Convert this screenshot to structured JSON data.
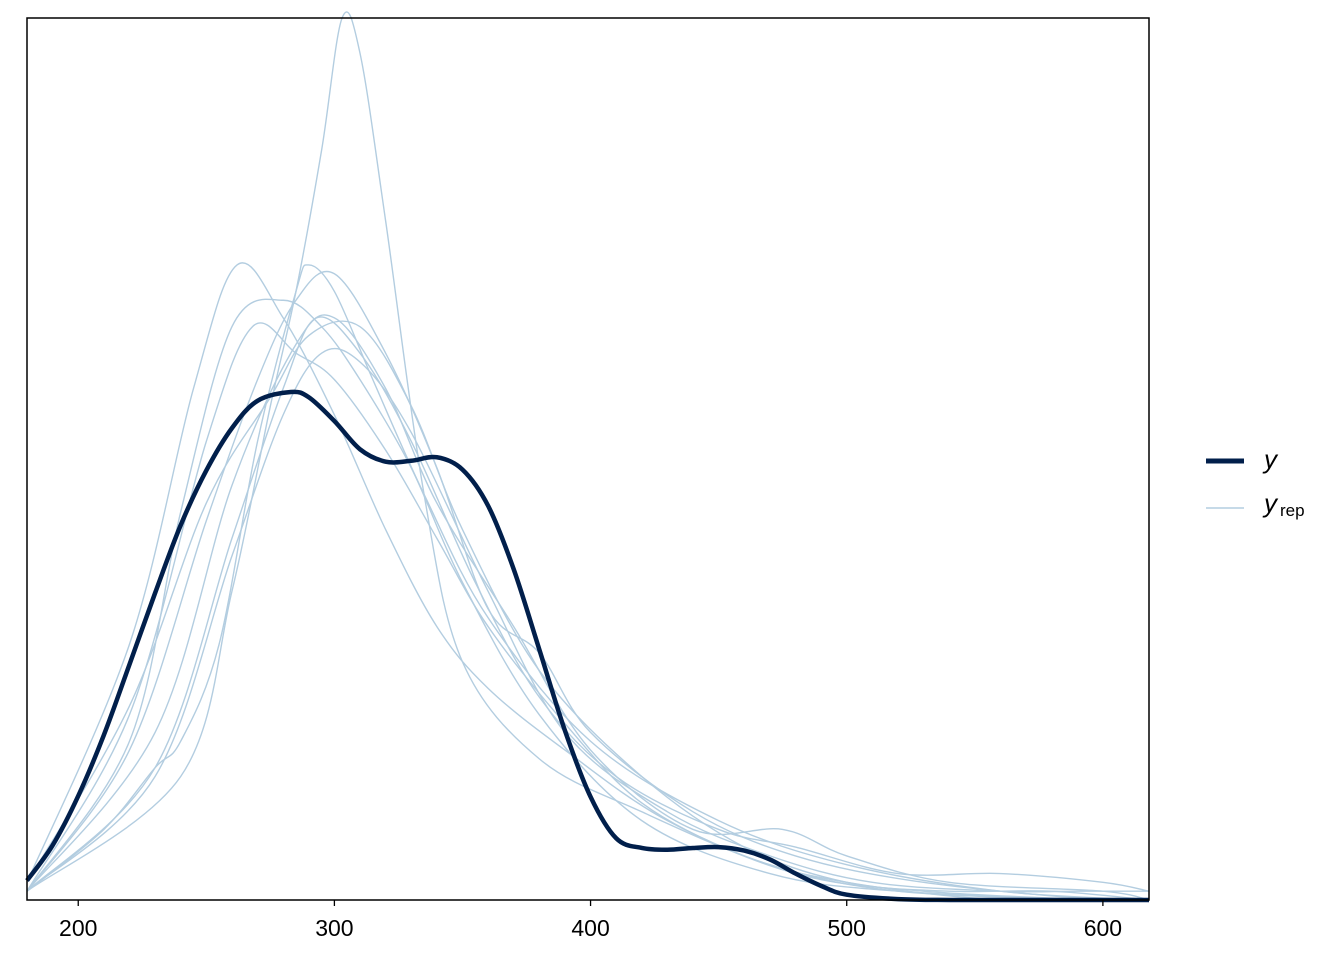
{
  "chart_data": {
    "type": "line",
    "title": "",
    "xlabel": "",
    "ylabel": "",
    "xlim": [
      180,
      618
    ],
    "ylim": [
      0,
      0.01
    ],
    "x_ticks": [
      "200",
      "300",
      "400",
      "500",
      "600"
    ],
    "grid": false,
    "legend_position": "right",
    "colors": {
      "y": "#011f4b",
      "yrep": "#b3cde0"
    },
    "series": [
      {
        "name": "y",
        "role": "observed",
        "x": [
          180,
          190,
          200,
          210,
          220,
          230,
          240,
          250,
          260,
          270,
          283,
          290,
          300,
          310,
          320,
          330,
          340,
          350,
          360,
          370,
          380,
          390,
          400,
          410,
          420,
          430,
          440,
          450,
          460,
          470,
          480,
          490,
          500,
          520,
          540,
          560,
          580,
          600,
          618
        ],
        "y": [
          0.00022,
          0.00062,
          0.00118,
          0.00187,
          0.00267,
          0.00348,
          0.00425,
          0.00487,
          0.00535,
          0.00566,
          0.00576,
          0.0057,
          0.00543,
          0.00511,
          0.00497,
          0.00498,
          0.00502,
          0.00488,
          0.00447,
          0.00375,
          0.00284,
          0.00192,
          0.00117,
          0.0007,
          0.00059,
          0.00057,
          0.00059,
          0.0006,
          0.00056,
          0.00046,
          0.0003,
          0.00016,
          6e-05,
          1e-05,
          0,
          0,
          0,
          0,
          0
        ]
      }
    ],
    "yrep": [
      {
        "x": [
          180,
          220,
          240,
          260,
          280,
          295,
          310,
          330,
          350,
          380,
          420,
          470,
          520,
          600,
          618
        ],
        "y": [
          0.0001,
          0.0018,
          0.0044,
          0.0065,
          0.0068,
          0.0065,
          0.0059,
          0.0049,
          0.0036,
          0.0021,
          0.0009,
          0.0003,
          0.0001,
          0,
          0
        ]
      },
      {
        "x": [
          180,
          220,
          245,
          262,
          280,
          300,
          320,
          340,
          360,
          390,
          430,
          480,
          530,
          600,
          618
        ],
        "y": [
          0.0002,
          0.0029,
          0.0058,
          0.0072,
          0.0066,
          0.0055,
          0.0042,
          0.0031,
          0.0024,
          0.0017,
          0.0009,
          0.0003,
          0.0001,
          0,
          0
        ]
      },
      {
        "x": [
          180,
          220,
          250,
          268,
          285,
          300,
          320,
          340,
          360,
          390,
          420,
          460,
          500,
          560,
          618
        ],
        "y": [
          0.0001,
          0.0021,
          0.0052,
          0.0065,
          0.0062,
          0.0059,
          0.0051,
          0.0041,
          0.0031,
          0.002,
          0.0011,
          0.0005,
          0.0002,
          0,
          0
        ]
      },
      {
        "x": [
          180,
          210,
          230,
          240,
          255,
          270,
          285,
          290,
          300,
          315,
          335,
          360,
          400,
          450,
          500,
          560,
          618
        ],
        "y": [
          0.0001,
          0.0008,
          0.0015,
          0.0018,
          0.0029,
          0.0052,
          0.0069,
          0.0072,
          0.0069,
          0.0059,
          0.0046,
          0.0032,
          0.0018,
          0.0009,
          0.0004,
          0.0001,
          0
        ]
      },
      {
        "x": [
          180,
          240,
          260,
          275,
          285,
          295,
          303,
          310,
          320,
          335,
          350,
          380,
          420,
          470,
          520,
          600,
          618
        ],
        "y": [
          0.0001,
          0.0014,
          0.0035,
          0.0056,
          0.0069,
          0.0085,
          0.01,
          0.0096,
          0.0077,
          0.0046,
          0.0027,
          0.0016,
          0.001,
          0.0004,
          0.0001,
          0,
          0
        ]
      },
      {
        "x": [
          180,
          220,
          250,
          270,
          285,
          300,
          320,
          340,
          360,
          380,
          400,
          440,
          480,
          530,
          600,
          618
        ],
        "y": [
          0.0001,
          0.0017,
          0.0043,
          0.0059,
          0.0068,
          0.0071,
          0.0062,
          0.0049,
          0.0033,
          0.0028,
          0.0019,
          0.001,
          0.0005,
          0.0002,
          0,
          0
        ]
      },
      {
        "x": [
          180,
          230,
          260,
          285,
          300,
          320,
          340,
          370,
          400,
          440,
          475,
          500,
          540,
          600,
          618
        ],
        "y": [
          0.0001,
          0.0019,
          0.0047,
          0.0063,
          0.0066,
          0.0058,
          0.0045,
          0.0031,
          0.0017,
          0.0008,
          0.0008,
          0.0005,
          0.0002,
          0.0001,
          0
        ]
      },
      {
        "x": [
          180,
          230,
          260,
          280,
          293,
          310,
          330,
          355,
          380,
          410,
          450,
          480,
          520,
          560,
          600,
          618
        ],
        "y": [
          0.0001,
          0.0015,
          0.0041,
          0.0058,
          0.0066,
          0.0062,
          0.0052,
          0.0036,
          0.0023,
          0.0014,
          0.0008,
          0.0006,
          0.0003,
          0.0003,
          0.0002,
          0.0001
        ]
      },
      {
        "x": [
          180,
          230,
          260,
          280,
          295,
          310,
          330,
          360,
          390,
          430,
          470,
          510,
          560,
          590,
          618
        ],
        "y": [
          0.0001,
          0.0014,
          0.0039,
          0.0055,
          0.0062,
          0.0061,
          0.0053,
          0.0035,
          0.0019,
          0.001,
          0.0005,
          0.0002,
          0.0001,
          0.0001,
          0.0001
        ]
      },
      {
        "x": [
          180,
          220,
          250,
          275,
          290,
          310,
          330,
          350,
          380,
          420,
          460,
          500,
          540,
          580,
          618
        ],
        "y": [
          0.0002,
          0.0022,
          0.0045,
          0.0057,
          0.0064,
          0.0065,
          0.0056,
          0.0042,
          0.0026,
          0.0014,
          0.0006,
          0.0002,
          0.0001,
          0.0001,
          0
        ]
      }
    ],
    "legend": {
      "y_label": "y",
      "yrep_label": "y",
      "yrep_sub": "rep"
    }
  }
}
